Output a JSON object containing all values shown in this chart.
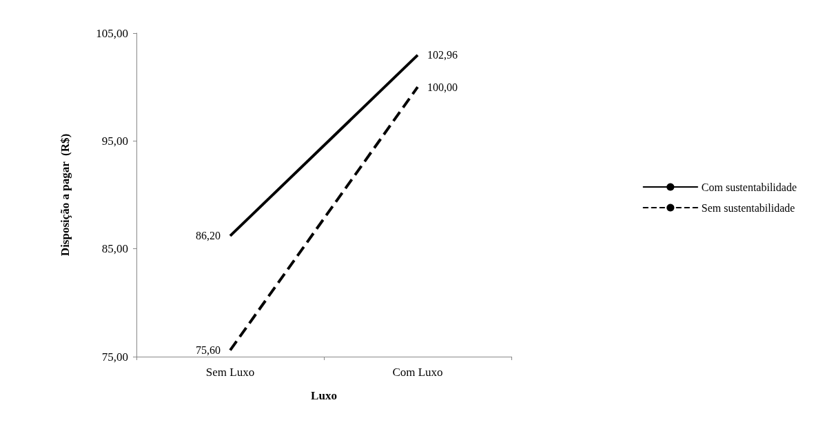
{
  "chart_data": {
    "type": "line",
    "xlabel": "Luxo",
    "ylabel": "Disposição a pagar  (R$)",
    "categories": [
      "Sem Luxo",
      "Com Luxo"
    ],
    "ylim": [
      75,
      105
    ],
    "yticks": [
      {
        "value": 75,
        "label": "75,00"
      },
      {
        "value": 85,
        "label": "85,00"
      },
      {
        "value": 95,
        "label": "95,00"
      },
      {
        "value": 105,
        "label": "105,00"
      }
    ],
    "series": [
      {
        "name": "Com sustentabilidade",
        "color": "#000000",
        "line_style": "solid",
        "values": [
          86.2,
          102.96
        ],
        "value_labels": [
          "86,20",
          "102,96"
        ]
      },
      {
        "name": "Sem sustentabilidade",
        "color": "#000000",
        "line_style": "dashed",
        "values": [
          75.6,
          100
        ],
        "value_labels": [
          "75,60",
          "100,00"
        ]
      }
    ],
    "grid": false,
    "legend": "right",
    "marker": "none"
  }
}
